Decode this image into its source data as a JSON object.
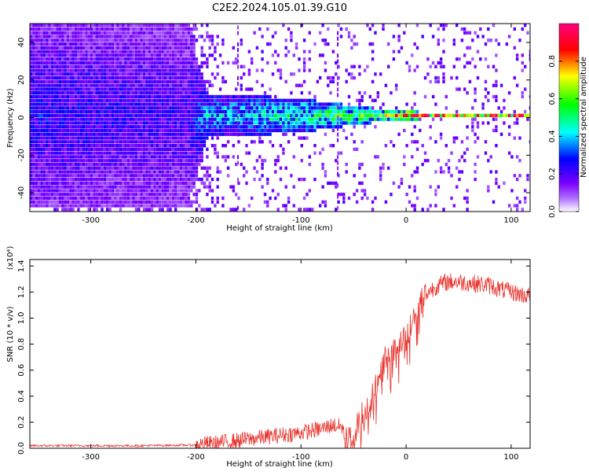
{
  "title": "C2E2.2024.105.01.39.G10",
  "chart_data": [
    {
      "type": "heatmap",
      "xlabel": "Height of straight line (km)",
      "ylabel": "Frequency (Hz)",
      "xlim": [
        -358,
        118
      ],
      "ylim": [
        -50,
        50
      ],
      "x_ticks": [
        -300,
        -200,
        -100,
        0,
        100
      ],
      "y_ticks": [
        -40,
        -20,
        0,
        20,
        40
      ],
      "colorbar": {
        "label": "Normalized spectral amplitude",
        "range": [
          0,
          1
        ],
        "ticks": [
          "0.0",
          "0.2",
          "0.4",
          "0.6",
          "0.8"
        ],
        "colors": [
          "#ffffff",
          "#8000ff",
          "#0000ff",
          "#00ffff",
          "#00ff00",
          "#ffff00",
          "#ff0000",
          "#ff0080"
        ]
      },
      "vertical_streaks_x": [
        -160,
        -65
      ],
      "band_profile": [
        {
          "x": -358,
          "width_hz": 100,
          "amplitude": 0.3
        },
        {
          "x": -210,
          "width_hz": 100,
          "amplitude": 0.25
        },
        {
          "x": -190,
          "width_hz": 24,
          "amplitude": 0.45
        },
        {
          "x": -100,
          "width_hz": 18,
          "amplitude": 0.55
        },
        {
          "x": -50,
          "width_hz": 10,
          "amplitude": 0.65
        },
        {
          "x": -20,
          "width_hz": 6,
          "amplitude": 0.75
        },
        {
          "x": 10,
          "width_hz": 4,
          "amplitude": 0.95
        },
        {
          "x": 118,
          "width_hz": 4,
          "amplitude": 0.9
        }
      ]
    },
    {
      "type": "line",
      "xlabel": "Height of straight line (km)",
      "ylabel": "SNR (10 * v/v)",
      "y_multiplier": "(x10⁴)",
      "xlim": [
        -358,
        118
      ],
      "ylim": [
        0,
        1.45
      ],
      "x_ticks": [
        -300,
        -200,
        -100,
        0,
        100
      ],
      "y_ticks": [
        "0.0",
        "0.2",
        "0.4",
        "0.6",
        "0.8",
        "1.0",
        "1.2",
        "1.4"
      ],
      "color": "#e8322c",
      "series": [
        {
          "x": [
            -358,
            -300,
            -250,
            -200,
            -180,
            -160,
            -140,
            -120,
            -100,
            -80,
            -70,
            -60,
            -55,
            -50,
            -45,
            -40,
            -35,
            -30,
            -25,
            -20,
            -15,
            -10,
            -5,
            0,
            5,
            10,
            15,
            20,
            30,
            40,
            50,
            60,
            70,
            80,
            90,
            100,
            110,
            118
          ],
          "values": [
            0.02,
            0.02,
            0.02,
            0.025,
            0.04,
            0.06,
            0.08,
            0.1,
            0.12,
            0.15,
            0.18,
            0.16,
            0.08,
            0.1,
            0.2,
            0.3,
            0.35,
            0.45,
            0.55,
            0.7,
            0.72,
            0.75,
            0.8,
            0.85,
            0.95,
            1.05,
            1.15,
            1.2,
            1.25,
            1.28,
            1.28,
            1.27,
            1.26,
            1.25,
            1.22,
            1.2,
            1.18,
            1.17
          ]
        }
      ]
    }
  ]
}
